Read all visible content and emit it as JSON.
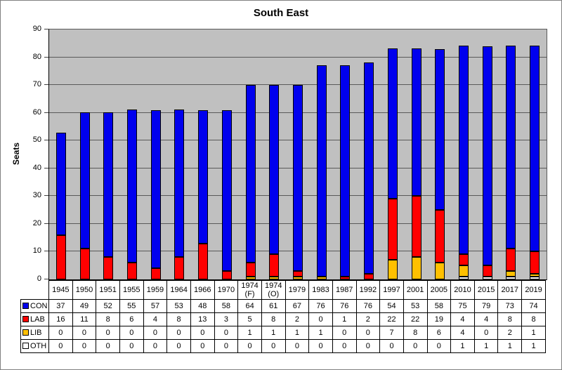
{
  "chart_data": {
    "type": "bar",
    "stacked": true,
    "title": "South East",
    "xlabel": "",
    "ylabel": "Seats",
    "ylim": [
      0,
      90
    ],
    "ytick_step": 10,
    "grid": true,
    "legend_position": "table-left",
    "plot_bg_color": "#C0C0C0",
    "gridline_color": "#595959",
    "categories": [
      "1945",
      "1950",
      "1951",
      "1955",
      "1959",
      "1964",
      "1966",
      "1970",
      "1974 (F)",
      "1974 (O)",
      "1979",
      "1983",
      "1987",
      "1992",
      "1997",
      "2001",
      "2005",
      "2010",
      "2015",
      "2017",
      "2019"
    ],
    "series": [
      {
        "name": "CON",
        "color": "#0000EE",
        "values": [
          37,
          49,
          52,
          55,
          57,
          53,
          48,
          58,
          64,
          61,
          67,
          76,
          76,
          76,
          54,
          53,
          58,
          75,
          79,
          73,
          74
        ]
      },
      {
        "name": "LAB",
        "color": "#FF0000",
        "values": [
          16,
          11,
          8,
          6,
          4,
          8,
          13,
          3,
          5,
          8,
          2,
          0,
          1,
          2,
          22,
          22,
          19,
          4,
          4,
          8,
          8
        ]
      },
      {
        "name": "LIB",
        "color": "#FFC000",
        "values": [
          0,
          0,
          0,
          0,
          0,
          0,
          0,
          0,
          1,
          1,
          1,
          1,
          0,
          0,
          7,
          8,
          6,
          4,
          0,
          2,
          1
        ]
      },
      {
        "name": "OTH",
        "color": "#FFFFFF",
        "values": [
          0,
          0,
          0,
          0,
          0,
          0,
          0,
          0,
          0,
          0,
          0,
          0,
          0,
          0,
          0,
          0,
          0,
          1,
          1,
          1,
          1
        ]
      }
    ],
    "stack_order_bottom_to_top": [
      "OTH",
      "LIB",
      "LAB",
      "CON"
    ]
  }
}
